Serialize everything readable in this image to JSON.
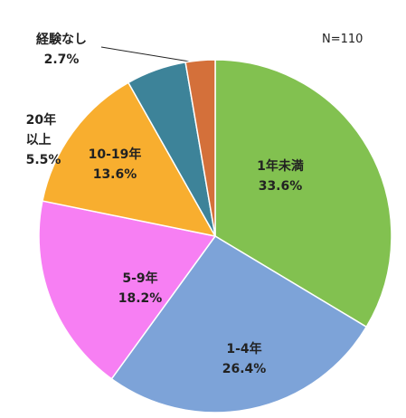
{
  "chart_data": {
    "type": "pie",
    "annotation": "N=110",
    "categories": [
      "1年未満",
      "1-4年",
      "5-9年",
      "10-19年",
      "20年以上",
      "経験なし"
    ],
    "values": [
      33.6,
      26.4,
      18.2,
      13.6,
      5.5,
      2.7
    ],
    "value_labels": [
      "33.6%",
      "26.4%",
      "18.2%",
      "13.6%",
      "5.5%",
      "2.7%"
    ],
    "colors": [
      "#82c150",
      "#7da3d8",
      "#f77ff3",
      "#f8ae2f",
      "#3d8399",
      "#d4703a"
    ]
  }
}
